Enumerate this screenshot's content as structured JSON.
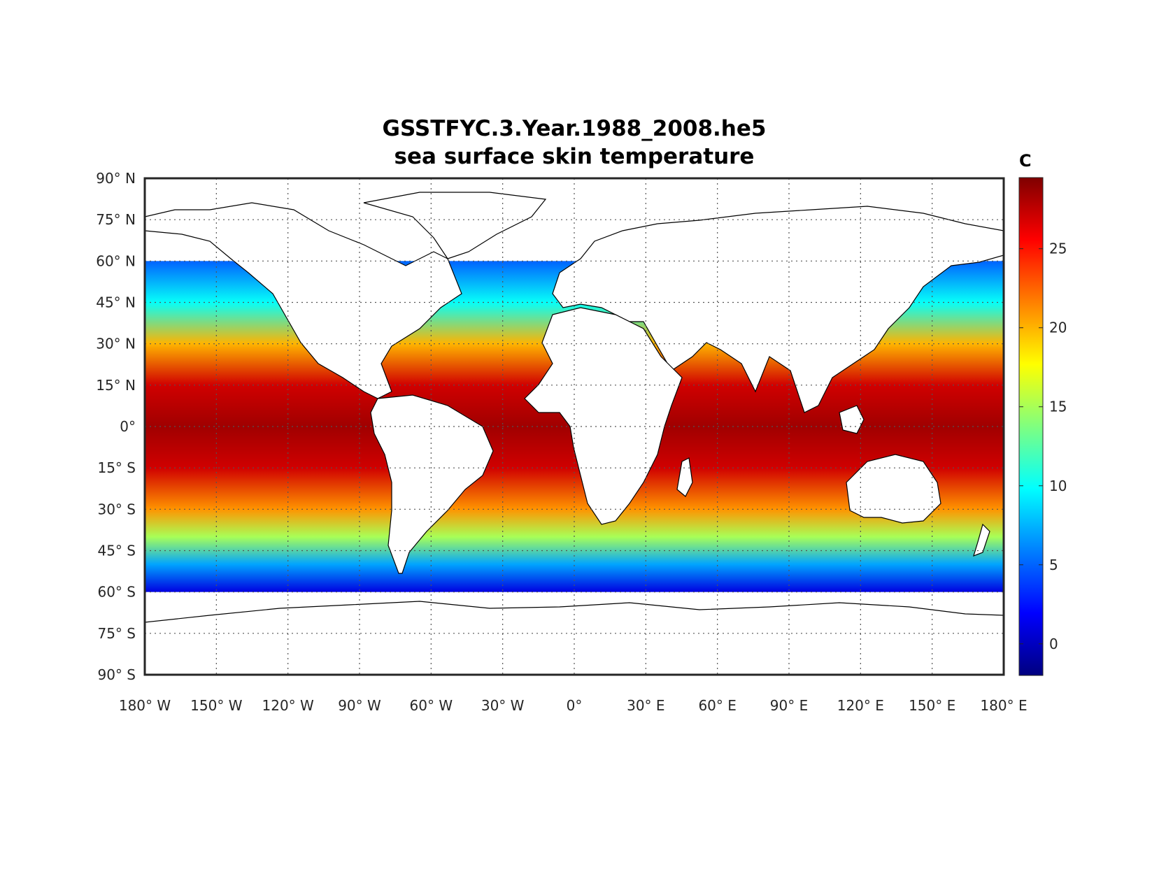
{
  "title_line1": "GSSTFYC.3.Year.1988_2008.he5",
  "title_line2": "sea surface skin temperature",
  "colorbar": {
    "unit": "C",
    "range": [
      -2,
      29.5
    ],
    "ticks": [
      {
        "value": 0,
        "label": "0"
      },
      {
        "value": 5,
        "label": "5"
      },
      {
        "value": 10,
        "label": "10"
      },
      {
        "value": 15,
        "label": "15"
      },
      {
        "value": 20,
        "label": "20"
      },
      {
        "value": 25,
        "label": "25"
      }
    ],
    "colormap": "jet"
  },
  "map": {
    "projection": "equirectangular",
    "lon_range": [
      -180,
      180
    ],
    "lat_range": [
      -90,
      90
    ],
    "grid": true,
    "lon_ticks": [
      {
        "value": -180,
        "label": "180° W"
      },
      {
        "value": -150,
        "label": "150° W"
      },
      {
        "value": -120,
        "label": "120° W"
      },
      {
        "value": -90,
        "label": "90° W"
      },
      {
        "value": -60,
        "label": "60° W"
      },
      {
        "value": -30,
        "label": "30° W"
      },
      {
        "value": 0,
        "label": "0°"
      },
      {
        "value": 30,
        "label": "30° E"
      },
      {
        "value": 60,
        "label": "60° E"
      },
      {
        "value": 90,
        "label": "90° E"
      },
      {
        "value": 120,
        "label": "120° E"
      },
      {
        "value": 150,
        "label": "150° E"
      },
      {
        "value": 180,
        "label": "180° E"
      }
    ],
    "lat_ticks": [
      {
        "value": 90,
        "label": "90° N"
      },
      {
        "value": 75,
        "label": "75° N"
      },
      {
        "value": 60,
        "label": "60° N"
      },
      {
        "value": 45,
        "label": "45° N"
      },
      {
        "value": 30,
        "label": "30° N"
      },
      {
        "value": 15,
        "label": "15° N"
      },
      {
        "value": 0,
        "label": "0°"
      },
      {
        "value": -15,
        "label": "15° S"
      },
      {
        "value": -30,
        "label": "30° S"
      },
      {
        "value": -45,
        "label": "45° S"
      },
      {
        "value": -60,
        "label": "60° S"
      },
      {
        "value": -75,
        "label": "75° S"
      },
      {
        "value": -90,
        "label": "90° S"
      }
    ],
    "sst_latitude_profile": [
      {
        "lat": 60,
        "value": 5
      },
      {
        "lat": 45,
        "value": 10
      },
      {
        "lat": 30,
        "value": 20
      },
      {
        "lat": 15,
        "value": 27
      },
      {
        "lat": 0,
        "value": 28.5
      },
      {
        "lat": -15,
        "value": 27
      },
      {
        "lat": -30,
        "value": 21
      },
      {
        "lat": -40,
        "value": 15
      },
      {
        "lat": -50,
        "value": 7
      },
      {
        "lat": -60,
        "value": 1
      }
    ]
  }
}
